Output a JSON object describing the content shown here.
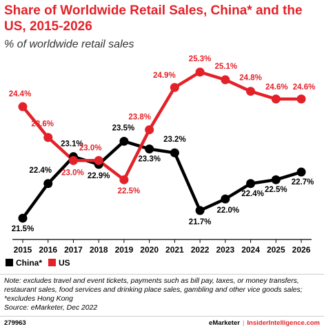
{
  "chart_data": {
    "type": "line",
    "title": "Share of Worldwide Retail Sales, China* and the US, 2015-2026",
    "subtitle": "% of worldwide retail sales",
    "x": [
      "2015",
      "2016",
      "2017",
      "2018",
      "2019",
      "2020",
      "2021",
      "2022",
      "2023",
      "2024",
      "2025",
      "2026"
    ],
    "ylim": [
      21.0,
      25.6
    ],
    "grid": false,
    "legend_position": "bottom-left",
    "series": [
      {
        "name": "China*",
        "color": "#000000",
        "values": [
          21.5,
          22.4,
          23.1,
          22.9,
          23.5,
          23.3,
          23.2,
          21.7,
          22.0,
          22.4,
          22.5,
          22.7
        ],
        "labels": [
          "21.5%",
          "22.4%",
          "23.1%",
          "22.9%",
          "23.5%",
          "23.3%",
          "23.2%",
          "21.7%",
          "22.0%",
          "22.4%",
          "22.5%",
          "22.7%"
        ]
      },
      {
        "name": "US",
        "color": "#e32128",
        "values": [
          24.4,
          23.6,
          23.0,
          23.0,
          22.5,
          23.8,
          24.9,
          25.3,
          25.1,
          24.8,
          24.6,
          24.6
        ],
        "labels": [
          "24.4%",
          "23.6%",
          "23.0%",
          "23.0%",
          "22.5%",
          "23.8%",
          "24.9%",
          "25.3%",
          "25.1%",
          "24.8%",
          "24.6%",
          "24.6%"
        ]
      }
    ]
  },
  "note": "Note: excludes travel and event tickets, payments such as bill pay, taxes, or money transfers, restaurant sales, food services and drinking place sales, gambling and other vice goods sales; *excludes Hong Kong",
  "source": "Source: eMarketer, Dec 2022",
  "footer": {
    "chart_id": "279963",
    "brand_primary": "eMarketer",
    "separator": "|",
    "brand_secondary": "InsiderIntelligence.com"
  }
}
